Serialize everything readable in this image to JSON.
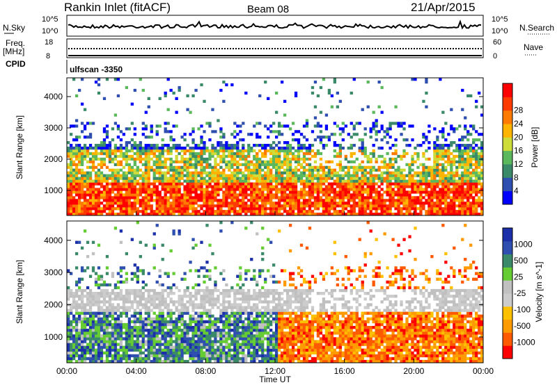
{
  "header": {
    "title": "Rankin Inlet (fitACF)",
    "beam": "Beam 08",
    "date": "21/Apr/2015"
  },
  "noise_panel": {
    "left_label": "N.Sky",
    "right_label": "N.Search",
    "top_tick": "10^5",
    "bottom_tick": "10^0",
    "right_top_tick": "10^5",
    "right_bottom_tick": "10^0"
  },
  "freq_panel": {
    "left_label_1": "Freq.",
    "left_label_2": "[MHz]",
    "left_top_tick": "18",
    "left_bottom_tick": "8",
    "right_label": "Nave",
    "right_top_tick": "60",
    "right_bottom_tick": "0"
  },
  "cpid": {
    "label": "CPID",
    "value": "ulfscan -3350"
  },
  "colors": {
    "power": [
      "#0000ff",
      "#2f4fb0",
      "#3a8a6a",
      "#5cb85c",
      "#cddc39",
      "#ffb400",
      "#ff7a00",
      "#ff3a00",
      "#ff0000"
    ],
    "velocity": [
      "#ff0000",
      "#ff5a00",
      "#ff9a00",
      "#ffc000",
      "#cccccc",
      "#c0c0c0",
      "#66cc33",
      "#3a8a6a",
      "#2f4fb0",
      "#1a2fa8"
    ]
  },
  "chart_data": [
    {
      "type": "heatmap",
      "name": "power",
      "ylabel": "Slant Range [km]",
      "yticks": [
        "1000",
        "2000",
        "3000",
        "4000"
      ],
      "ylim": [
        200,
        4600
      ],
      "colorbar_label": "Power [dB]",
      "colorbar_ticks": [
        "4",
        "8",
        "12",
        "16",
        "20",
        "24",
        "28"
      ],
      "colorbar_range": [
        0,
        32
      ]
    },
    {
      "type": "heatmap",
      "name": "velocity",
      "ylabel": "Slant Range [km]",
      "yticks": [
        "1000",
        "2000",
        "3000",
        "4000"
      ],
      "ylim": [
        200,
        4600
      ],
      "colorbar_label": "Velocity [m s^-1]",
      "colorbar_ticks": [
        "1000",
        "500",
        "25",
        "-25",
        "-100",
        "-500",
        "-1000"
      ],
      "colorbar_range": [
        -1200,
        1200
      ]
    }
  ],
  "xaxis": {
    "xlabel": "Time UT",
    "ticks": [
      "00:00",
      "04:00",
      "08:00",
      "12:00",
      "16:00",
      "20:00",
      "00:00"
    ]
  }
}
